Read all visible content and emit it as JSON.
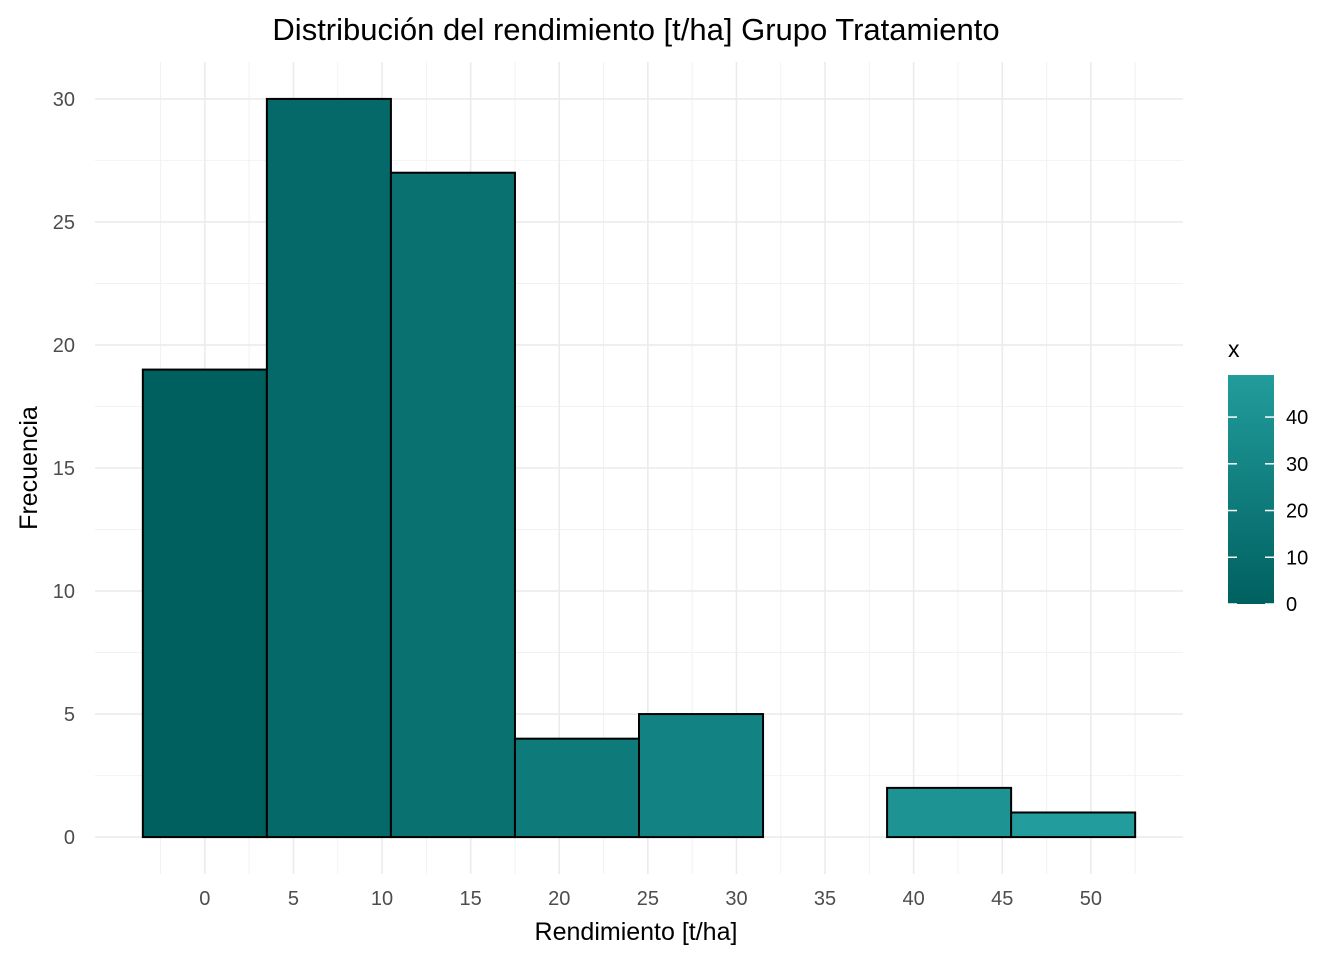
{
  "chart_data": {
    "type": "bar",
    "title": "Distribución del rendimiento [t/ha] Grupo Tratamiento",
    "xlabel": "Rendimiento [t/ha]",
    "ylabel": "Frecuencia",
    "bin_width": 7,
    "bins": [
      {
        "start": -3.5,
        "end": 3.5,
        "center": 0,
        "count": 19
      },
      {
        "start": 3.5,
        "end": 10.5,
        "center": 7,
        "count": 30
      },
      {
        "start": 10.5,
        "end": 17.5,
        "center": 14,
        "count": 27
      },
      {
        "start": 17.5,
        "end": 24.5,
        "center": 21,
        "count": 4
      },
      {
        "start": 24.5,
        "end": 31.5,
        "center": 28,
        "count": 5
      },
      {
        "start": 31.5,
        "end": 38.5,
        "center": 35,
        "count": 0
      },
      {
        "start": 38.5,
        "end": 45.5,
        "center": 42,
        "count": 2
      },
      {
        "start": 45.5,
        "end": 52.5,
        "center": 49,
        "count": 1
      }
    ],
    "xlim": [
      -6.2,
      55.2
    ],
    "ylim": [
      -1.5,
      31.5
    ],
    "x_ticks": [
      "0",
      "5",
      "10",
      "15",
      "20",
      "25",
      "30",
      "35",
      "40",
      "45",
      "50"
    ],
    "y_ticks": [
      "0",
      "5",
      "10",
      "15",
      "20",
      "25",
      "30"
    ],
    "grid": true,
    "legend": {
      "title": "x",
      "placement": "right",
      "type": "colorbar",
      "range": [
        0,
        49
      ],
      "ticks": [
        "0",
        "10",
        "20",
        "30",
        "40"
      ],
      "color_low": "#006060",
      "color_high": "#229c9c"
    }
  }
}
